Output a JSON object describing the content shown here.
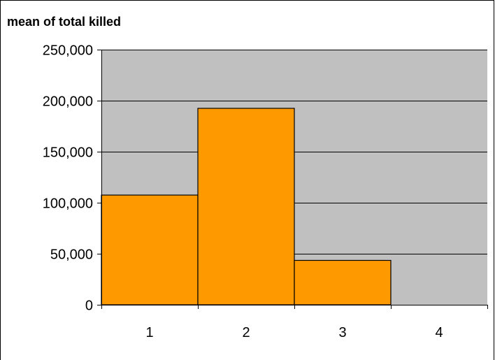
{
  "chart_data": {
    "type": "bar",
    "title": "mean of total killed",
    "xlabel": "",
    "ylabel": "",
    "categories": [
      "1",
      "2",
      "3",
      "4"
    ],
    "values": [
      107500,
      192500,
      43500,
      0
    ],
    "ylim": [
      0,
      250000
    ],
    "yticks": [
      0,
      50000,
      100000,
      150000,
      200000,
      250000
    ],
    "ytick_labels": [
      "0",
      "50,000",
      "100,000",
      "150,000",
      "200,000",
      "250,000"
    ],
    "grid": true,
    "bar_gap": "none",
    "colors": {
      "bar_fill": "#FF9900",
      "bar_stroke": "#000000",
      "plot_background": "#C0C0C0",
      "gridline": "#000000",
      "page_background": "#FFFFFF"
    }
  }
}
